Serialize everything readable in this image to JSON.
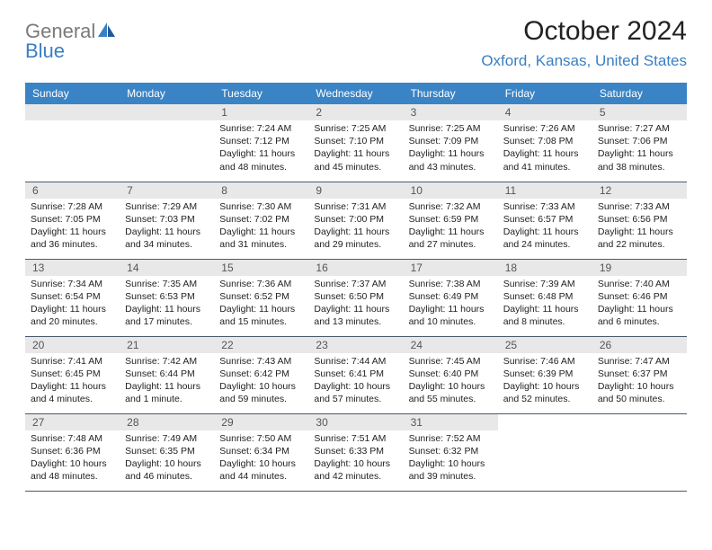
{
  "logo": {
    "text1": "General",
    "text2": "Blue"
  },
  "title": "October 2024",
  "location": "Oxford, Kansas, United States",
  "colors": {
    "header_bg": "#3a84c5",
    "header_text": "#ffffff",
    "daynum_bg": "#e8e8e8",
    "border": "#4a5a6a",
    "logo_gray": "#7a7a7a",
    "logo_blue": "#3a7fc4"
  },
  "dayHeaders": [
    "Sunday",
    "Monday",
    "Tuesday",
    "Wednesday",
    "Thursday",
    "Friday",
    "Saturday"
  ],
  "startOffset": 2,
  "daysInMonth": 31,
  "days": {
    "1": {
      "sunrise": "7:24 AM",
      "sunset": "7:12 PM",
      "daylight": "11 hours and 48 minutes."
    },
    "2": {
      "sunrise": "7:25 AM",
      "sunset": "7:10 PM",
      "daylight": "11 hours and 45 minutes."
    },
    "3": {
      "sunrise": "7:25 AM",
      "sunset": "7:09 PM",
      "daylight": "11 hours and 43 minutes."
    },
    "4": {
      "sunrise": "7:26 AM",
      "sunset": "7:08 PM",
      "daylight": "11 hours and 41 minutes."
    },
    "5": {
      "sunrise": "7:27 AM",
      "sunset": "7:06 PM",
      "daylight": "11 hours and 38 minutes."
    },
    "6": {
      "sunrise": "7:28 AM",
      "sunset": "7:05 PM",
      "daylight": "11 hours and 36 minutes."
    },
    "7": {
      "sunrise": "7:29 AM",
      "sunset": "7:03 PM",
      "daylight": "11 hours and 34 minutes."
    },
    "8": {
      "sunrise": "7:30 AM",
      "sunset": "7:02 PM",
      "daylight": "11 hours and 31 minutes."
    },
    "9": {
      "sunrise": "7:31 AM",
      "sunset": "7:00 PM",
      "daylight": "11 hours and 29 minutes."
    },
    "10": {
      "sunrise": "7:32 AM",
      "sunset": "6:59 PM",
      "daylight": "11 hours and 27 minutes."
    },
    "11": {
      "sunrise": "7:33 AM",
      "sunset": "6:57 PM",
      "daylight": "11 hours and 24 minutes."
    },
    "12": {
      "sunrise": "7:33 AM",
      "sunset": "6:56 PM",
      "daylight": "11 hours and 22 minutes."
    },
    "13": {
      "sunrise": "7:34 AM",
      "sunset": "6:54 PM",
      "daylight": "11 hours and 20 minutes."
    },
    "14": {
      "sunrise": "7:35 AM",
      "sunset": "6:53 PM",
      "daylight": "11 hours and 17 minutes."
    },
    "15": {
      "sunrise": "7:36 AM",
      "sunset": "6:52 PM",
      "daylight": "11 hours and 15 minutes."
    },
    "16": {
      "sunrise": "7:37 AM",
      "sunset": "6:50 PM",
      "daylight": "11 hours and 13 minutes."
    },
    "17": {
      "sunrise": "7:38 AM",
      "sunset": "6:49 PM",
      "daylight": "11 hours and 10 minutes."
    },
    "18": {
      "sunrise": "7:39 AM",
      "sunset": "6:48 PM",
      "daylight": "11 hours and 8 minutes."
    },
    "19": {
      "sunrise": "7:40 AM",
      "sunset": "6:46 PM",
      "daylight": "11 hours and 6 minutes."
    },
    "20": {
      "sunrise": "7:41 AM",
      "sunset": "6:45 PM",
      "daylight": "11 hours and 4 minutes."
    },
    "21": {
      "sunrise": "7:42 AM",
      "sunset": "6:44 PM",
      "daylight": "11 hours and 1 minute."
    },
    "22": {
      "sunrise": "7:43 AM",
      "sunset": "6:42 PM",
      "daylight": "10 hours and 59 minutes."
    },
    "23": {
      "sunrise": "7:44 AM",
      "sunset": "6:41 PM",
      "daylight": "10 hours and 57 minutes."
    },
    "24": {
      "sunrise": "7:45 AM",
      "sunset": "6:40 PM",
      "daylight": "10 hours and 55 minutes."
    },
    "25": {
      "sunrise": "7:46 AM",
      "sunset": "6:39 PM",
      "daylight": "10 hours and 52 minutes."
    },
    "26": {
      "sunrise": "7:47 AM",
      "sunset": "6:37 PM",
      "daylight": "10 hours and 50 minutes."
    },
    "27": {
      "sunrise": "7:48 AM",
      "sunset": "6:36 PM",
      "daylight": "10 hours and 48 minutes."
    },
    "28": {
      "sunrise": "7:49 AM",
      "sunset": "6:35 PM",
      "daylight": "10 hours and 46 minutes."
    },
    "29": {
      "sunrise": "7:50 AM",
      "sunset": "6:34 PM",
      "daylight": "10 hours and 44 minutes."
    },
    "30": {
      "sunrise": "7:51 AM",
      "sunset": "6:33 PM",
      "daylight": "10 hours and 42 minutes."
    },
    "31": {
      "sunrise": "7:52 AM",
      "sunset": "6:32 PM",
      "daylight": "10 hours and 39 minutes."
    }
  },
  "labels": {
    "sunrise": "Sunrise:",
    "sunset": "Sunset:",
    "daylight": "Daylight:"
  }
}
